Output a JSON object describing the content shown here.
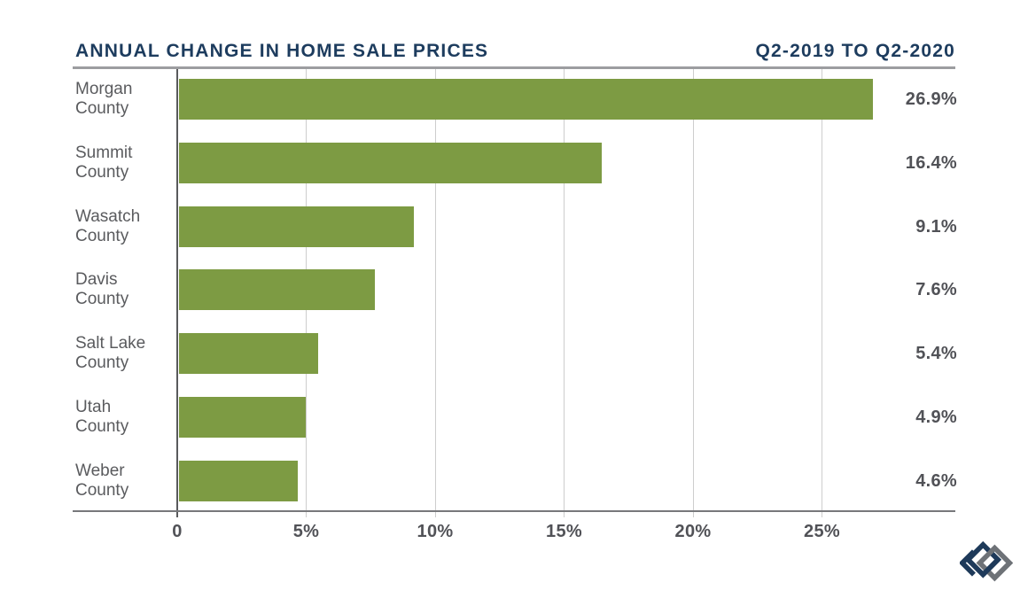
{
  "chart_data": {
    "type": "bar",
    "orientation": "horizontal",
    "title": "ANNUAL CHANGE IN HOME SALE PRICES",
    "subtitle": "Q2-2019 TO Q2-2020",
    "categories": [
      "Morgan County",
      "Summit County",
      "Wasatch County",
      "Davis County",
      "Salt Lake County",
      "Utah County",
      "Weber County"
    ],
    "category_lines": [
      [
        "Morgan",
        "County"
      ],
      [
        "Summit",
        "County"
      ],
      [
        "Wasatch",
        "County"
      ],
      [
        "Davis",
        "County"
      ],
      [
        "Salt Lake",
        "County"
      ],
      [
        "Utah",
        "County"
      ],
      [
        "Weber",
        "County"
      ]
    ],
    "values": [
      26.9,
      16.4,
      9.1,
      7.6,
      5.4,
      4.9,
      4.6
    ],
    "value_labels": [
      "26.9%",
      "16.4%",
      "9.1%",
      "7.6%",
      "5.4%",
      "4.9%",
      "4.6%"
    ],
    "x_ticks": [
      {
        "value": 0,
        "label": "0"
      },
      {
        "value": 5,
        "label": "5%"
      },
      {
        "value": 10,
        "label": "10%"
      },
      {
        "value": 15,
        "label": "15%"
      },
      {
        "value": 20,
        "label": "20%"
      },
      {
        "value": 25,
        "label": "25%"
      }
    ],
    "xlim": [
      0,
      30.2
    ],
    "grid": true,
    "legend": "none",
    "bar_color": "#7d9b43"
  },
  "logo": {
    "icon": "interlocking-diamonds-logo",
    "navy": "#1e3a5a",
    "gray": "#6e7277"
  },
  "colors": {
    "background": "#ffffff",
    "navy": "#1d3c5e",
    "bar_green": "#7d9b43",
    "label_gray": "#5a5b5e",
    "value_gray": "#515257",
    "grid_gray": "#cdcdcd",
    "axis_gray": "#77787b",
    "rule_gray": "#9c9da0",
    "zero_line_gray": "#595a5c"
  }
}
